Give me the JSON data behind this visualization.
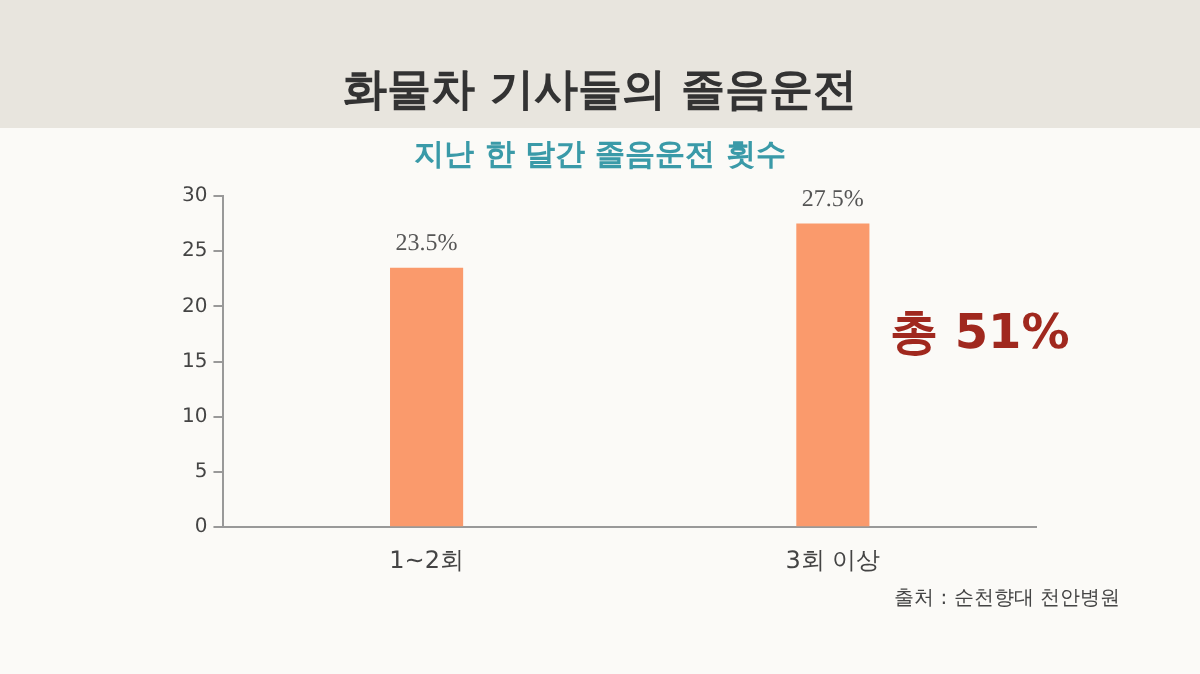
{
  "chart_data": {
    "type": "bar",
    "title": "화물차 기사들의 졸음운전",
    "subtitle": "지난 한 달간 졸음운전 횟수",
    "categories": [
      "1~2회",
      "3회 이상"
    ],
    "values": [
      23.5,
      27.5
    ],
    "color": "#fa9a6c",
    "value_labels": [
      "23.5%",
      "27.5%"
    ],
    "ylim": [
      0,
      30
    ],
    "yticks": [
      0,
      5,
      10,
      15,
      20,
      25,
      30
    ],
    "grid": false,
    "legend": false,
    "annotations": [
      "총 51%",
      "출처 : 순천향대 천안병원"
    ]
  }
}
